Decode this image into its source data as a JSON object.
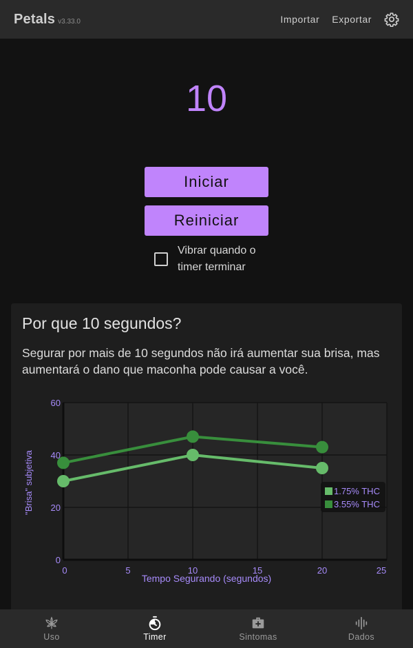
{
  "app": {
    "name": "Petals",
    "version": "v3.33.0"
  },
  "topbar": {
    "import_label": "Importar",
    "export_label": "Exportar"
  },
  "timer": {
    "value": "10",
    "start_label": "Iniciar",
    "reset_label": "Reiniciar",
    "vibrate_label": "Vibrar quando o timer terminar",
    "vibrate_checked": false
  },
  "info": {
    "title": "Por que 10 segundos?",
    "body": "Segurar por mais de 10 segundos não irá aumentar sua brisa, mas aumentará o dano que maconha pode causar a você."
  },
  "chart_data": {
    "type": "line",
    "xlabel": "Tempo Segurando (segundos)",
    "ylabel": "\"Brisa\" subjetiva",
    "xlim": [
      0,
      25
    ],
    "ylim": [
      0,
      60
    ],
    "xticks": [
      "0",
      "5",
      "10",
      "15",
      "20",
      "25"
    ],
    "yticks": [
      "0",
      "20",
      "40",
      "60"
    ],
    "grid": true,
    "legend_position": "right",
    "series": [
      {
        "name": "1.75% THC",
        "color": "#66bb6a",
        "x": [
          0,
          10,
          20
        ],
        "y": [
          30,
          40,
          35
        ]
      },
      {
        "name": "3.55% THC",
        "color": "#388e3c",
        "x": [
          0,
          10,
          20
        ],
        "y": [
          37,
          47,
          43
        ]
      }
    ]
  },
  "colors": {
    "accent": "#c084fc",
    "surface": "#1e1e1e",
    "bar": "#2a2a2a"
  },
  "bottom_nav": {
    "items": [
      {
        "label": "Uso",
        "icon": "cannabis-leaf-icon"
      },
      {
        "label": "Timer",
        "icon": "timer-icon"
      },
      {
        "label": "Sintomas",
        "icon": "medical-kit-icon"
      },
      {
        "label": "Dados",
        "icon": "waveform-icon"
      }
    ],
    "active": "Timer"
  }
}
